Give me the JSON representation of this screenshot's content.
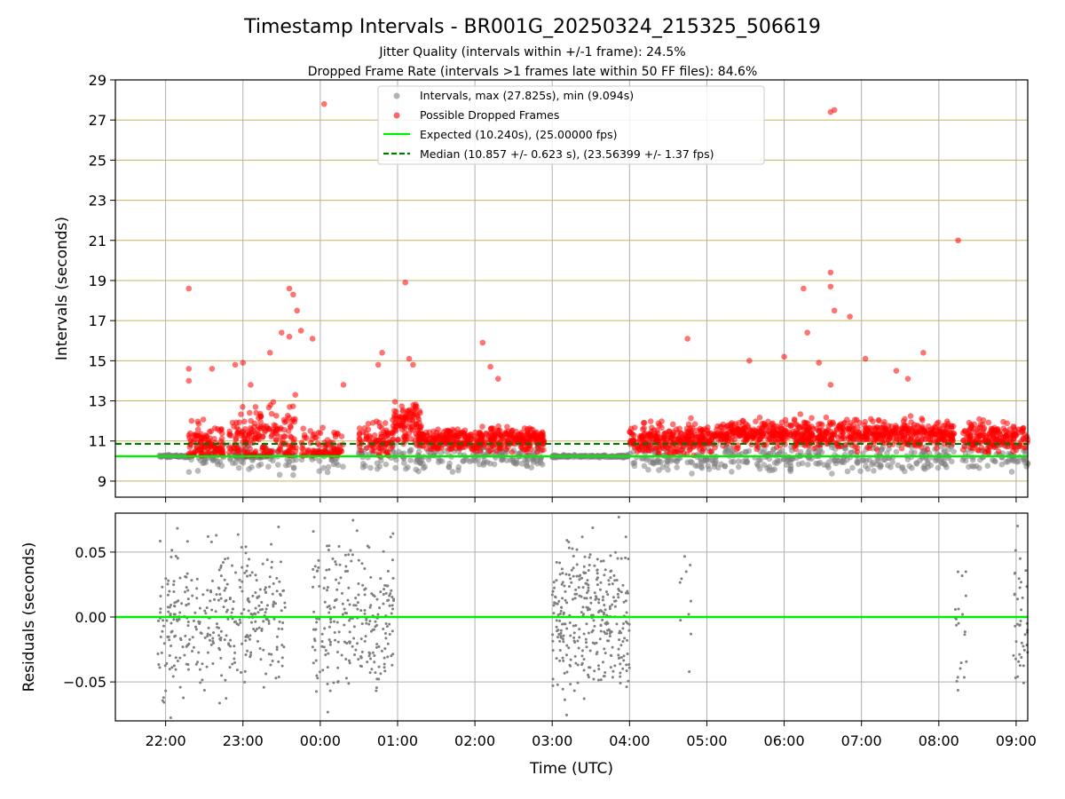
{
  "chart_data": {
    "type": "scatter",
    "title": "Timestamp Intervals - BR001G_20250324_215325_506619",
    "subtitle_lines": [
      "Jitter Quality (intervals within +/-1 frame): 24.5%",
      "Dropped Frame Rate (intervals >1 frames late within 50 FF files): 84.6%"
    ],
    "xlabel": "Time (UTC)",
    "x_tick_labels": [
      "22:00",
      "23:00",
      "00:00",
      "01:00",
      "02:00",
      "03:00",
      "04:00",
      "05:00",
      "06:00",
      "07:00",
      "08:00",
      "09:00"
    ],
    "x_tick_hours": [
      22,
      23,
      24,
      25,
      26,
      27,
      28,
      29,
      30,
      31,
      32,
      33
    ],
    "xlim_hours": [
      21.35,
      33.15
    ],
    "top_panel": {
      "ylabel": "Intervals (seconds)",
      "ylim": [
        8.2,
        29
      ],
      "y_ticks": [
        9,
        11,
        13,
        15,
        17,
        19,
        21,
        23,
        25,
        27,
        29
      ],
      "y_tick_labels": [
        "9",
        "11",
        "13",
        "15",
        "17",
        "19",
        "21",
        "23",
        "25",
        "27",
        "29"
      ],
      "grid": true,
      "legend": {
        "placement": "upper-center",
        "entries": [
          {
            "label": "Intervals, max (27.825s), min (9.094s)",
            "marker": "circle",
            "color": "#808080"
          },
          {
            "label": "Possible Dropped Frames",
            "marker": "circle",
            "color": "#ff0000"
          },
          {
            "label": "Expected (10.240s), (25.00000 fps)",
            "marker": "solid-line",
            "color": "#00ee00"
          },
          {
            "label": "Median (10.857 +/- 0.623 s), (23.56399 +/- 1.37 fps)",
            "marker": "dashed-line",
            "color": "#007700"
          }
        ]
      },
      "expected_line": 10.24,
      "median_line": 10.857,
      "baseline_segments": [
        {
          "x_start": 21.9,
          "x_end": 22.35,
          "y": 10.24
        },
        {
          "x_start": 22.9,
          "x_end": 23.3,
          "y": 10.24
        },
        {
          "x_start": 27.0,
          "x_end": 28.0,
          "y": 10.24
        }
      ],
      "dropped_frame_clusters": [
        {
          "x_start": 22.3,
          "x_end": 22.75,
          "y_center": 10.9,
          "spread": 0.9,
          "count": 110
        },
        {
          "x_start": 22.8,
          "x_end": 23.7,
          "y_center": 11.2,
          "spread": 1.2,
          "count": 190
        },
        {
          "x_start": 23.75,
          "x_end": 24.3,
          "y_center": 10.7,
          "spread": 0.8,
          "count": 90
        },
        {
          "x_start": 24.5,
          "x_end": 24.95,
          "y_center": 11.0,
          "spread": 0.9,
          "count": 90
        },
        {
          "x_start": 24.95,
          "x_end": 25.3,
          "y_center": 11.9,
          "spread": 0.8,
          "count": 90
        },
        {
          "x_start": 25.25,
          "x_end": 26.9,
          "y_center": 11.1,
          "spread": 0.5,
          "count": 420
        },
        {
          "x_start": 28.0,
          "x_end": 29.1,
          "y_center": 11.1,
          "spread": 0.6,
          "count": 280
        },
        {
          "x_start": 29.1,
          "x_end": 32.2,
          "y_center": 11.35,
          "spread": 0.55,
          "count": 750
        },
        {
          "x_start": 32.3,
          "x_end": 33.15,
          "y_center": 11.2,
          "spread": 0.6,
          "count": 190
        }
      ],
      "dropped_frame_outliers": [
        [
          22.3,
          18.6
        ],
        [
          22.3,
          14.6
        ],
        [
          22.3,
          14.0
        ],
        [
          22.6,
          14.6
        ],
        [
          22.9,
          14.8
        ],
        [
          23.0,
          14.9
        ],
        [
          23.1,
          13.8
        ],
        [
          23.35,
          15.4
        ],
        [
          23.5,
          16.4
        ],
        [
          23.6,
          18.6
        ],
        [
          23.65,
          18.3
        ],
        [
          23.7,
          17.5
        ],
        [
          23.75,
          16.5
        ],
        [
          23.6,
          16.2
        ],
        [
          23.9,
          16.1
        ],
        [
          24.05,
          27.8
        ],
        [
          24.3,
          13.8
        ],
        [
          24.8,
          15.4
        ],
        [
          24.75,
          14.8
        ],
        [
          25.1,
          18.9
        ],
        [
          25.15,
          15.1
        ],
        [
          25.2,
          14.8
        ],
        [
          26.1,
          15.9
        ],
        [
          26.2,
          14.7
        ],
        [
          26.3,
          14.1
        ],
        [
          28.75,
          16.1
        ],
        [
          29.55,
          15.0
        ],
        [
          30.0,
          15.2
        ],
        [
          30.25,
          18.6
        ],
        [
          30.3,
          16.4
        ],
        [
          30.45,
          14.9
        ],
        [
          30.6,
          27.4
        ],
        [
          30.65,
          27.5
        ],
        [
          30.6,
          19.4
        ],
        [
          30.6,
          18.7
        ],
        [
          30.65,
          17.5
        ],
        [
          30.6,
          13.8
        ],
        [
          30.85,
          17.2
        ],
        [
          31.05,
          15.1
        ],
        [
          31.45,
          14.5
        ],
        [
          31.6,
          14.1
        ],
        [
          31.8,
          15.4
        ],
        [
          32.25,
          21.0
        ]
      ],
      "gray_scatter_note": "Intervals shown in gray where not flagged, mostly 9.4 to 11.6 s"
    },
    "bottom_panel": {
      "ylabel": "Residuals (seconds)",
      "ylim": [
        -0.08,
        0.08
      ],
      "y_ticks": [
        -0.05,
        0.0,
        0.05
      ],
      "y_tick_labels": [
        "−0.05",
        "0.00",
        "0.05"
      ],
      "grid": true,
      "zero_line_color": "#00ee00",
      "residual_clusters": [
        {
          "x_start": 21.9,
          "x_end": 22.95,
          "count": 230
        },
        {
          "x_start": 22.95,
          "x_end": 23.55,
          "count": 130
        },
        {
          "x_start": 23.9,
          "x_end": 24.95,
          "count": 250
        },
        {
          "x_start": 27.0,
          "x_end": 28.0,
          "count": 330
        },
        {
          "x_start": 28.65,
          "x_end": 28.8,
          "count": 10
        },
        {
          "x_start": 32.2,
          "x_end": 32.4,
          "count": 20
        },
        {
          "x_start": 32.95,
          "x_end": 33.15,
          "count": 40
        }
      ]
    },
    "colors": {
      "gray_points": "#7f7f7f",
      "red_points": "#ff0000",
      "expected": "#00ee00",
      "median": "#007700",
      "grid_vertical": "#b0b0b0",
      "grid_horizontal_top": "#c8b560"
    }
  }
}
